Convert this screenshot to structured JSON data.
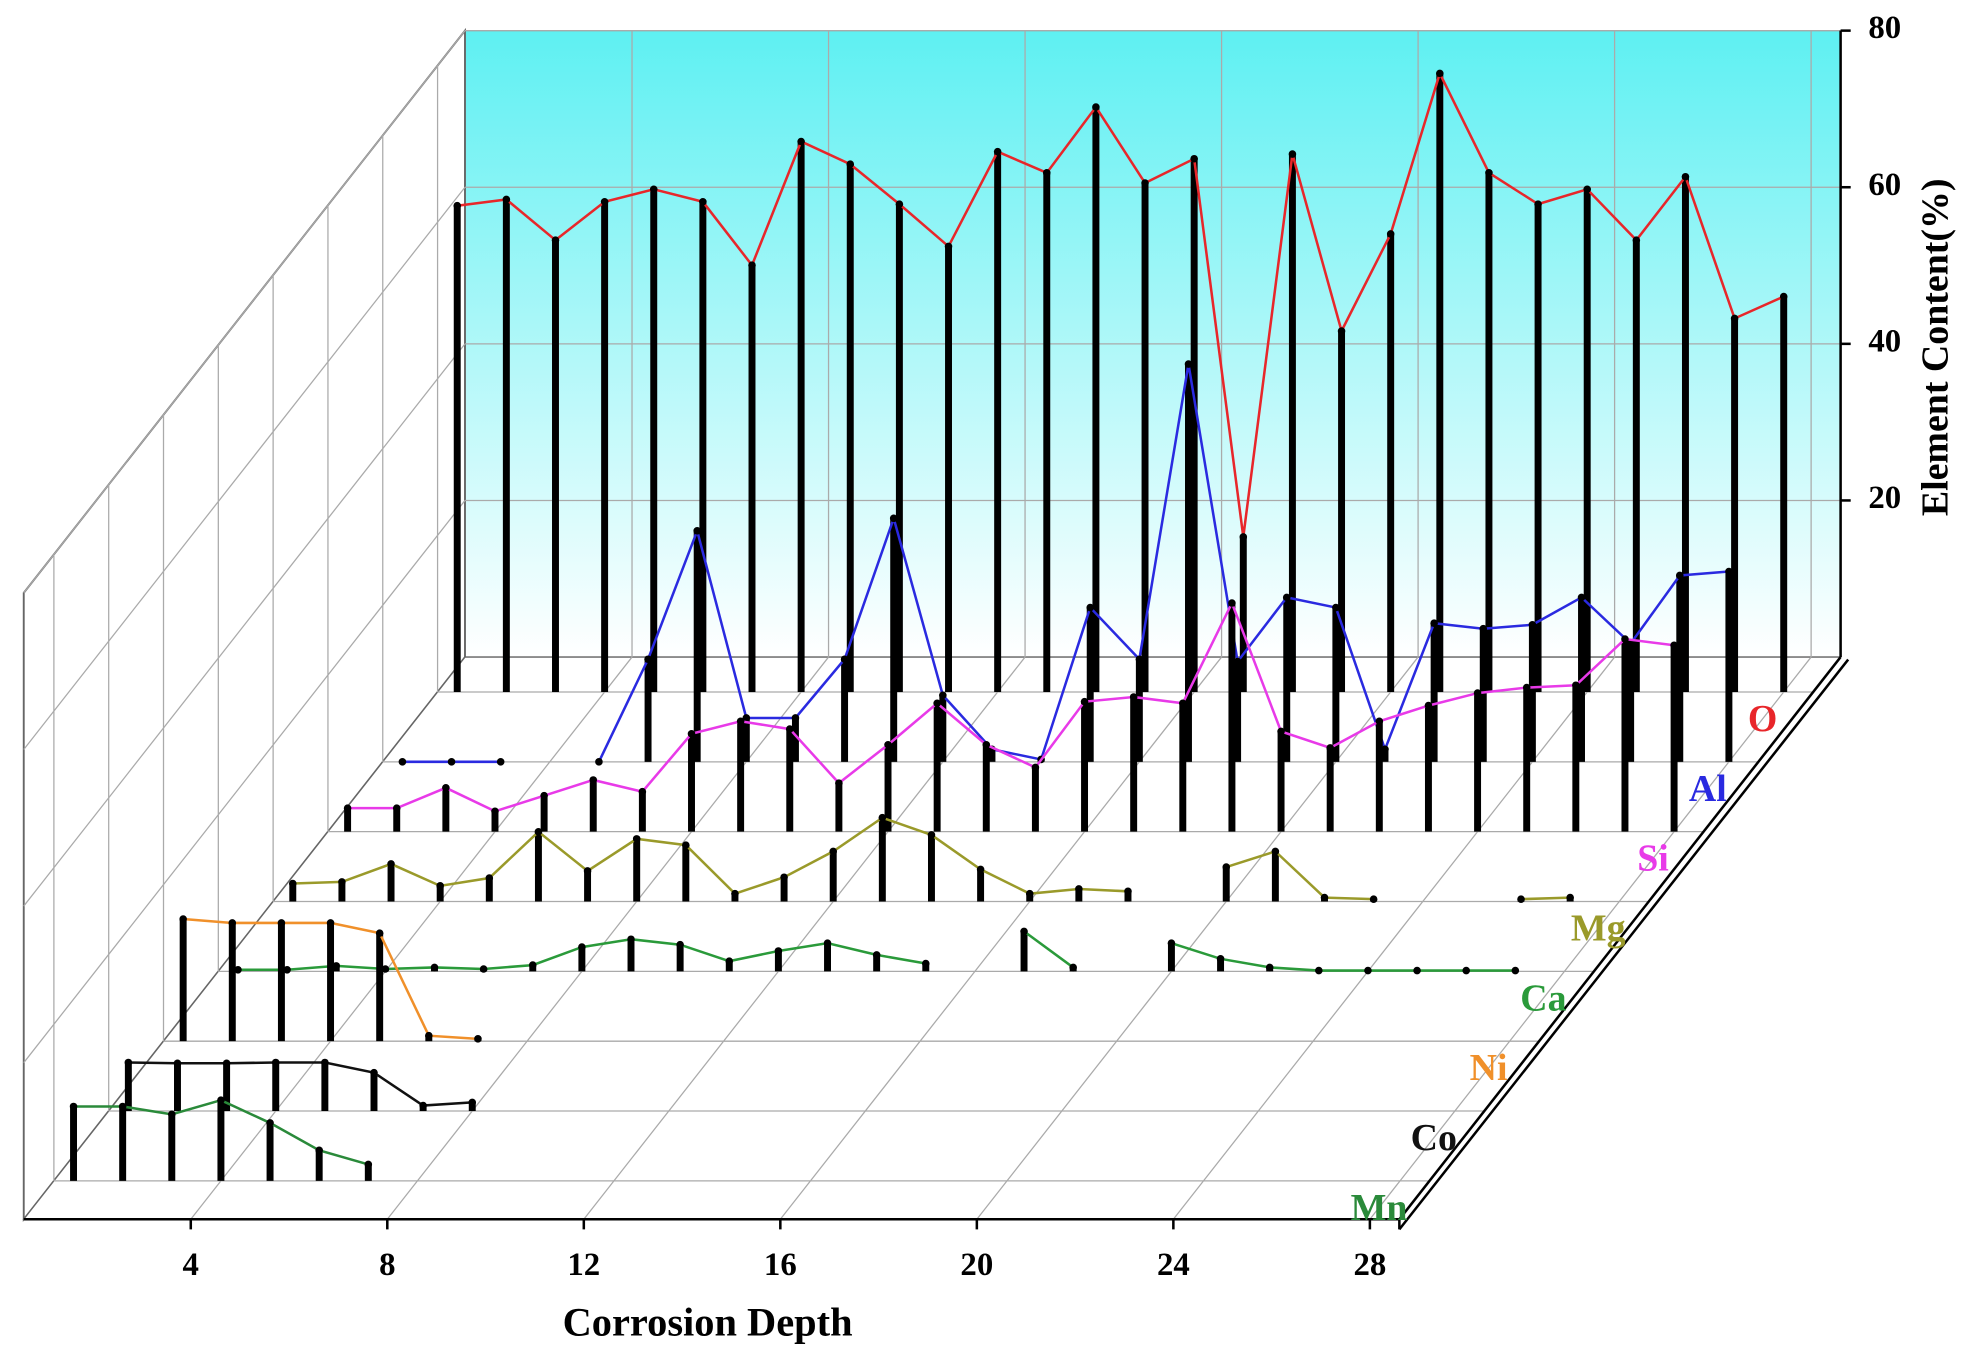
{
  "chart_data": {
    "type": "waterfall",
    "x_label": "Corrosion Depth",
    "y_label": "Element Content(%)",
    "x": [
      1,
      2,
      3,
      4,
      5,
      6,
      7,
      8,
      9,
      10,
      11,
      12,
      13,
      14,
      15,
      16,
      17,
      18,
      19,
      20,
      21,
      22,
      23,
      24,
      25,
      26,
      27,
      28
    ],
    "xlim": [
      0.6,
      28.6
    ],
    "xticks": [
      4,
      8,
      12,
      16,
      20,
      24,
      28
    ],
    "ylim": [
      0,
      80
    ],
    "yticks": [
      20,
      40,
      60,
      80
    ],
    "grid": true,
    "series": [
      {
        "name": "O",
        "color": "#e8262a",
        "values": [
          62.1,
          62.9,
          57.7,
          62.6,
          64.2,
          62.6,
          54.5,
          70.3,
          67.4,
          62.3,
          56.9,
          69.0,
          66.3,
          74.7,
          65.0,
          68.1,
          19.8,
          68.7,
          46.1,
          58.5,
          79.0,
          66.3,
          62.3,
          64.2,
          57.7,
          65.8,
          47.7,
          50.5
        ]
      },
      {
        "name": "Al",
        "color": "#2a2ae0",
        "values": [
          0,
          0,
          0,
          null,
          0,
          13.1,
          29.5,
          5.6,
          5.6,
          13.1,
          31.1,
          8.5,
          1.6,
          0.3,
          19.7,
          13.1,
          50.8,
          12.8,
          21.0,
          19.7,
          1.6,
          17.7,
          17.0,
          17.5,
          21.0,
          15.1,
          23.8,
          24.3
        ]
      },
      {
        "name": "Si",
        "color": "#e83ae8",
        "values": [
          3.0,
          3.0,
          5.6,
          2.6,
          4.6,
          6.6,
          5.1,
          12.5,
          14.1,
          13.1,
          6.2,
          11.1,
          16.4,
          11.1,
          8.2,
          16.6,
          17.2,
          16.4,
          29.2,
          12.8,
          10.7,
          14.1,
          16.1,
          17.7,
          18.4,
          18.7,
          24.6,
          23.8
        ]
      },
      {
        "name": "Mg",
        "color": "#9a9a2a",
        "values": [
          2.3,
          2.5,
          4.8,
          2.0,
          3.0,
          8.9,
          3.9,
          8.0,
          7.2,
          1.0,
          3.1,
          6.4,
          10.7,
          8.5,
          4.1,
          1.0,
          1.6,
          1.3,
          null,
          4.4,
          6.4,
          0.5,
          0.3,
          null,
          null,
          0.3,
          0.5,
          null
        ]
      },
      {
        "name": "Ca",
        "color": "#2a9a3a",
        "values": [
          0.2,
          0.2,
          0.7,
          0.3,
          0.5,
          0.3,
          0.8,
          3.1,
          4.1,
          3.4,
          1.3,
          2.6,
          3.6,
          2.1,
          1.0,
          null,
          5.1,
          0.5,
          null,
          3.6,
          1.6,
          0.5,
          0.1,
          0.1,
          0.1,
          0.1,
          0.1,
          null
        ]
      },
      {
        "name": "Ni",
        "color": "#f0902a",
        "values": [
          15.6,
          15.1,
          15.1,
          15.1,
          13.8,
          0.7,
          0.3,
          null,
          null,
          null,
          null,
          null,
          null,
          null,
          null,
          null,
          null,
          null,
          null,
          null,
          null,
          null,
          null,
          null,
          null,
          null,
          null,
          null
        ]
      },
      {
        "name": "Co",
        "color": "#111111",
        "values": [
          6.2,
          6.1,
          6.1,
          6.2,
          6.2,
          4.9,
          0.7,
          1.1,
          null,
          null,
          null,
          null,
          null,
          null,
          null,
          null,
          null,
          null,
          null,
          null,
          null,
          null,
          null,
          null,
          null,
          null,
          null,
          null
        ]
      },
      {
        "name": "Mn",
        "color": "#2a8a3a",
        "values": [
          9.5,
          9.5,
          8.5,
          10.3,
          7.4,
          3.9,
          2.1,
          null,
          null,
          null,
          null,
          null,
          null,
          null,
          null,
          null,
          null,
          null,
          null,
          null,
          null,
          null,
          null,
          null,
          null,
          null,
          null,
          null
        ]
      }
    ]
  }
}
